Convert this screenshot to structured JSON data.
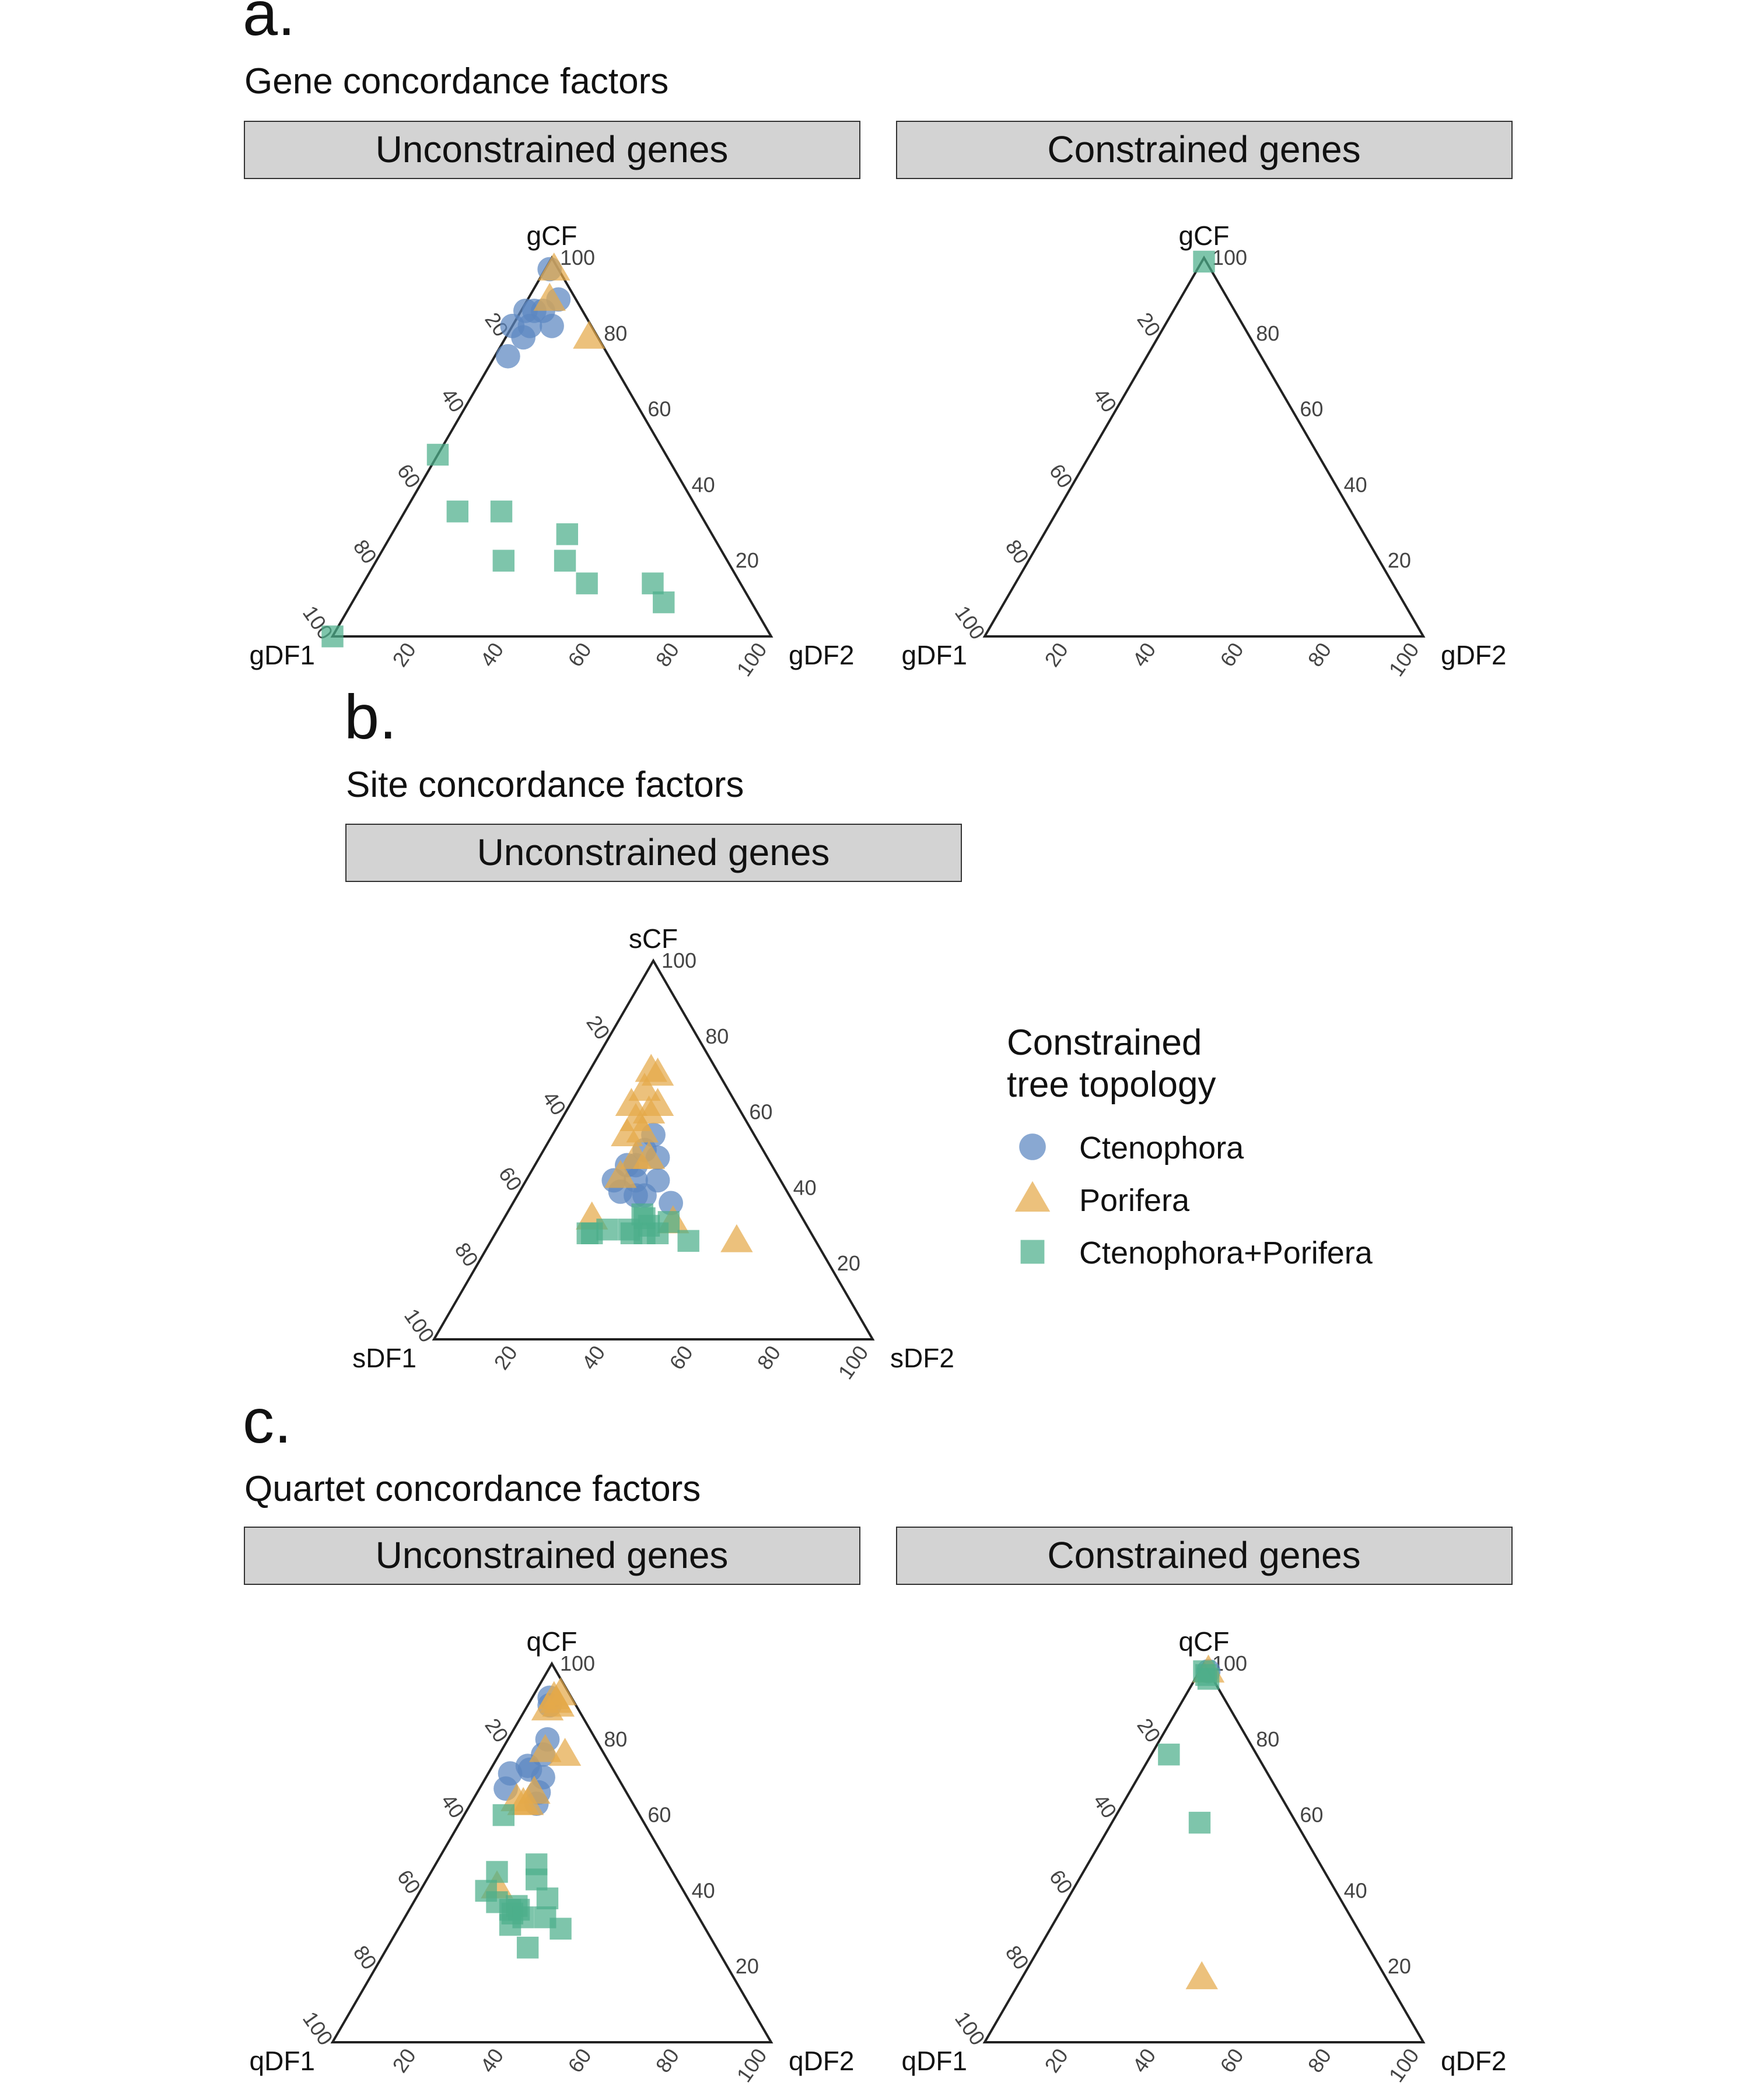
{
  "colors": {
    "ctenophora": "#5b86c1",
    "porifera": "#e5a94a",
    "ctenophora_porifera": "#4caf8a",
    "strip_fill": "#d3d3d3",
    "axis": "#222222"
  },
  "sections": [
    {
      "letter": "a.",
      "title": "Gene concordance factors"
    },
    {
      "letter": "b.",
      "title": "Site concordance factors"
    },
    {
      "letter": "c.",
      "title": "Quartet concordance factors"
    }
  ],
  "tick_labels": [
    "20",
    "40",
    "60",
    "80",
    "100"
  ],
  "legend": {
    "title_line1": "Constrained",
    "title_line2": "tree topology",
    "items": [
      {
        "key": "ctenophora",
        "shape": "circle",
        "label": "Ctenophora"
      },
      {
        "key": "porifera",
        "shape": "triangle",
        "label": "Porifera"
      },
      {
        "key": "ctenophora_porifera",
        "shape": "square",
        "label": "Ctenophora+Porifera"
      }
    ]
  },
  "chart_data": [
    {
      "type": "scatter",
      "subtype": "ternary",
      "section": "a.",
      "panel": "Unconstrained genes",
      "axes": {
        "top": "gCF",
        "left": "gDF1",
        "right": "gDF2"
      },
      "range": [
        0,
        100
      ],
      "series": [
        {
          "name": "Ctenophora",
          "key": "ctenophora",
          "shape": "circle",
          "points": [
            [
              97,
              1
            ],
            [
              89,
              7
            ],
            [
              86,
              3
            ],
            [
              86,
              1
            ],
            [
              82,
              9
            ],
            [
              82,
              4
            ],
            [
              79,
              4
            ],
            [
              74,
              3
            ],
            [
              82,
              0
            ],
            [
              86,
              5
            ]
          ]
        },
        {
          "name": "Porifera",
          "key": "porifera",
          "shape": "triangle",
          "points": [
            [
              97,
              2
            ],
            [
              89,
              5
            ],
            [
              79,
              19
            ]
          ]
        },
        {
          "name": "Ctenophora+Porifera",
          "key": "ctenophora_porifera",
          "shape": "square",
          "points": [
            [
              0,
              0
            ],
            [
              33,
              12
            ],
            [
              48,
              0
            ],
            [
              33,
              22
            ],
            [
              27,
              40
            ],
            [
              20,
              43
            ],
            [
              20,
              29
            ],
            [
              14,
              66
            ],
            [
              14,
              51
            ],
            [
              9,
              71
            ]
          ]
        }
      ]
    },
    {
      "type": "scatter",
      "subtype": "ternary",
      "section": "a.",
      "panel": "Constrained genes",
      "axes": {
        "top": "gCF",
        "left": "gDF1",
        "right": "gDF2"
      },
      "range": [
        0,
        100
      ],
      "series": [
        {
          "name": "Ctenophora+Porifera",
          "key": "ctenophora_porifera",
          "shape": "square",
          "points": [
            [
              99,
              0.5
            ]
          ]
        }
      ]
    },
    {
      "type": "scatter",
      "subtype": "ternary",
      "section": "b.",
      "panel": "Unconstrained genes",
      "axes": {
        "top": "sCF",
        "left": "sDF1",
        "right": "sDF2"
      },
      "range": [
        0,
        100
      ],
      "series": [
        {
          "name": "Ctenophora",
          "key": "ctenophora",
          "shape": "circle",
          "points": [
            [
              54,
              23
            ],
            [
              50,
              23
            ],
            [
              46,
              23
            ],
            [
              48,
              27
            ],
            [
              42,
              25
            ],
            [
              42,
              30
            ],
            [
              38,
              27
            ],
            [
              38,
              29
            ],
            [
              39,
              23
            ],
            [
              42,
              20
            ],
            [
              36,
              36
            ],
            [
              46,
              21
            ]
          ]
        },
        {
          "name": "Porifera",
          "key": "porifera",
          "shape": "triangle",
          "points": [
            [
              71,
              14
            ],
            [
              70,
              16
            ],
            [
              66,
              15
            ],
            [
              62,
              14
            ],
            [
              60,
              19
            ],
            [
              58,
              17
            ],
            [
              62,
              20
            ],
            [
              55,
              20
            ],
            [
              54,
              17
            ],
            [
              48,
              22
            ],
            [
              48,
              25
            ],
            [
              43,
              21
            ],
            [
              31,
              39
            ],
            [
              32,
              20
            ],
            [
              26,
              56
            ]
          ]
        },
        {
          "name": "Ctenophora+Porifera",
          "key": "ctenophora_porifera",
          "shape": "square",
          "points": [
            [
              33,
              31
            ],
            [
              32,
              32
            ],
            [
              31,
              38
            ],
            [
              30,
              34
            ],
            [
              29,
              30
            ],
            [
              28,
              34
            ],
            [
              28,
              37
            ],
            [
              28,
              31
            ],
            [
              29,
              25
            ],
            [
              26,
              45
            ],
            [
              28,
              21
            ],
            [
              28,
              22
            ]
          ]
        }
      ]
    },
    {
      "type": "scatter",
      "subtype": "ternary",
      "section": "c.",
      "panel": "Unconstrained genes",
      "axes": {
        "top": "qCF",
        "left": "qDF1",
        "right": "qDF2"
      },
      "range": [
        0,
        100
      ],
      "series": [
        {
          "name": "Ctenophora",
          "key": "ctenophora",
          "shape": "circle",
          "points": [
            [
              91,
              4
            ],
            [
              89,
              5
            ],
            [
              80,
              9
            ],
            [
              76,
              10
            ],
            [
              73,
              8
            ],
            [
              71,
              5
            ],
            [
              67,
              6
            ],
            [
              66,
              14
            ],
            [
              63,
              15
            ],
            [
              70,
              13
            ],
            [
              72,
              9
            ]
          ]
        },
        {
          "name": "Porifera",
          "key": "porifera",
          "shape": "triangle",
          "points": [
            [
              92,
              6
            ],
            [
              91,
              5
            ],
            [
              90,
              6
            ],
            [
              89,
              7
            ],
            [
              88,
              5
            ],
            [
              77,
              10
            ],
            [
              76,
              15
            ],
            [
              66,
              13
            ],
            [
              63,
              12
            ],
            [
              63,
              13
            ],
            [
              64,
              10
            ],
            [
              41,
              17
            ]
          ]
        },
        {
          "name": "Ctenophora+Porifera",
          "key": "ctenophora_porifera",
          "shape": "square",
          "points": [
            [
              60,
              9
            ],
            [
              47,
              23
            ],
            [
              45,
              15
            ],
            [
              43,
              25
            ],
            [
              40,
              15
            ],
            [
              38,
              30
            ],
            [
              37,
              19
            ],
            [
              36,
              24
            ],
            [
              35,
              25
            ],
            [
              35,
              23
            ],
            [
              34,
              24
            ],
            [
              33,
              27
            ],
            [
              33,
              32
            ],
            [
              31,
              25
            ],
            [
              30,
              37
            ],
            [
              25,
              32
            ]
          ]
        }
      ]
    },
    {
      "type": "scatter",
      "subtype": "ternary",
      "section": "c.",
      "panel": "Constrained genes",
      "axes": {
        "top": "qCF",
        "left": "qDF1",
        "right": "qDF2"
      },
      "range": [
        0,
        100
      ],
      "series": [
        {
          "name": "Ctenophora",
          "key": "ctenophora",
          "shape": "circle",
          "points": [
            [
              98,
              2
            ]
          ]
        },
        {
          "name": "Porifera",
          "key": "porifera",
          "shape": "triangle",
          "points": [
            [
              98,
              2
            ],
            [
              17,
              41
            ]
          ]
        },
        {
          "name": "Ctenophora+Porifera",
          "key": "ctenophora_porifera",
          "shape": "square",
          "points": [
            [
              97,
              2
            ],
            [
              96,
              3
            ],
            [
              98,
              1
            ],
            [
              76,
              4
            ],
            [
              58,
              20
            ]
          ]
        }
      ]
    }
  ]
}
